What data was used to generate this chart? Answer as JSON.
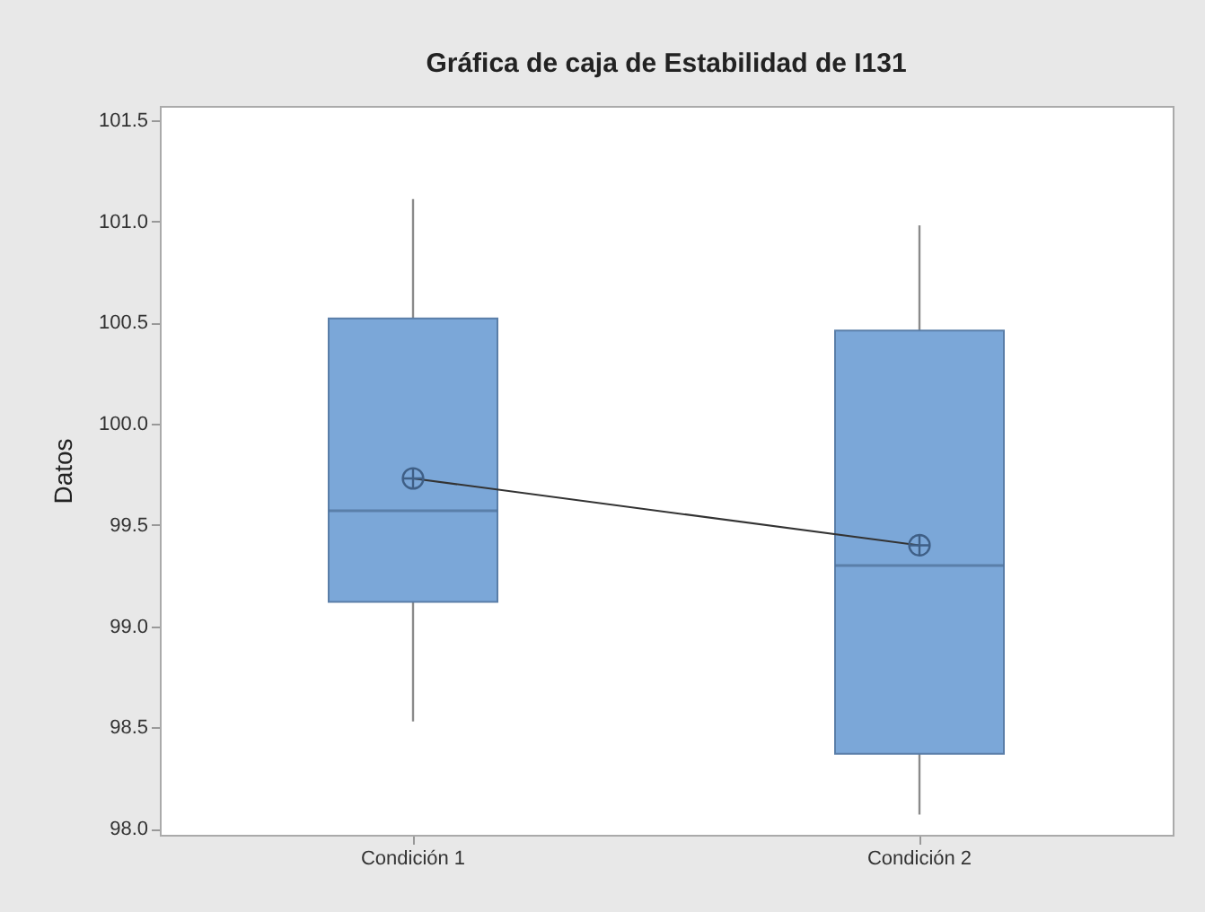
{
  "chart_data": {
    "type": "box",
    "title": "Gráfica de caja de Estabilidad de I131",
    "ylabel": "Datos",
    "categories": [
      "Condición 1",
      "Condición 2"
    ],
    "color": "#7ba7d8",
    "boxes": [
      {
        "low": 98.53,
        "q1": 99.12,
        "median": 99.57,
        "q3": 100.52,
        "high": 101.11,
        "mean": 99.73
      },
      {
        "low": 98.07,
        "q1": 98.37,
        "median": 99.3,
        "q3": 100.46,
        "high": 100.98,
        "mean": 99.4
      }
    ],
    "series": [
      {
        "type": "line",
        "color": "#333333",
        "values": [
          99.73,
          99.4
        ]
      }
    ],
    "ylim": [
      97.97,
      101.57
    ],
    "yticks": [
      {
        "value": 98,
        "label": "98.0"
      },
      {
        "value": 98.5,
        "label": "98.5"
      },
      {
        "value": 99,
        "label": "99.0"
      },
      {
        "value": 99.5,
        "label": "99.5"
      },
      {
        "value": 100,
        "label": "100.0"
      },
      {
        "value": 100.5,
        "label": "100.5"
      },
      {
        "value": 101,
        "label": "101.0"
      },
      {
        "value": 101.5,
        "label": "101.5"
      }
    ],
    "grid": false
  }
}
